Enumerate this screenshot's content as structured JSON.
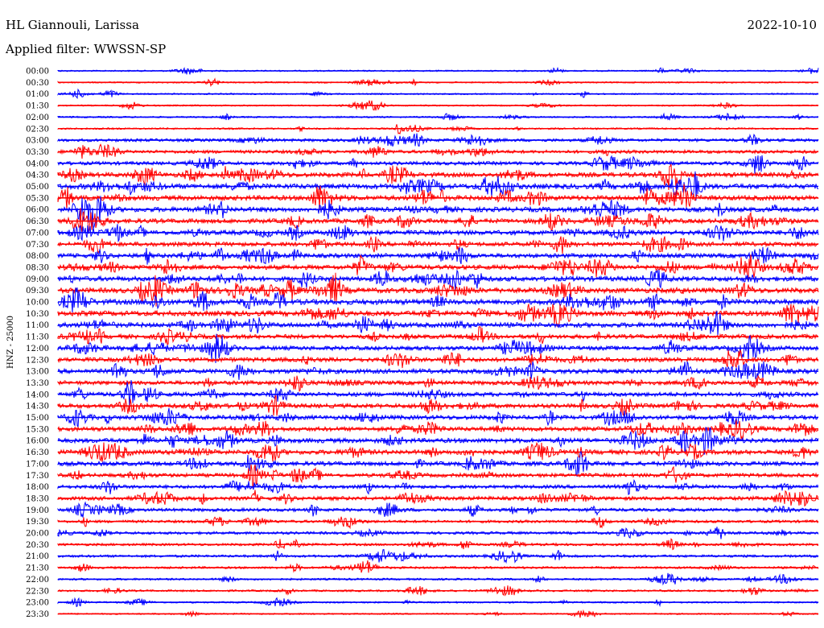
{
  "header": {
    "station": "HL Giannouli, Larissa",
    "date": "2022-10-10",
    "filter": "Applied filter: WWSSN-SP"
  },
  "chart_data": {
    "type": "line",
    "ylabel": "HNZ - 25000",
    "colors": {
      "odd_rows": "#0000ff",
      "even_rows": "#ff0000",
      "text": "#000000"
    },
    "rows": [
      {
        "label": "00:00",
        "activity": 0.15
      },
      {
        "label": "00:30",
        "activity": 0.15
      },
      {
        "label": "01:00",
        "activity": 0.15
      },
      {
        "label": "01:30",
        "activity": 0.15
      },
      {
        "label": "02:00",
        "activity": 0.18
      },
      {
        "label": "02:30",
        "activity": 0.2
      },
      {
        "label": "03:00",
        "activity": 0.45
      },
      {
        "label": "03:30",
        "activity": 0.5
      },
      {
        "label": "04:00",
        "activity": 0.55
      },
      {
        "label": "04:30",
        "activity": 0.75
      },
      {
        "label": "05:00",
        "activity": 0.85
      },
      {
        "label": "05:30",
        "activity": 0.8
      },
      {
        "label": "06:00",
        "activity": 0.8
      },
      {
        "label": "06:30",
        "activity": 0.75
      },
      {
        "label": "07:00",
        "activity": 0.75
      },
      {
        "label": "07:30",
        "activity": 0.7
      },
      {
        "label": "08:00",
        "activity": 0.7
      },
      {
        "label": "08:30",
        "activity": 0.75
      },
      {
        "label": "09:00",
        "activity": 0.8
      },
      {
        "label": "09:30",
        "activity": 0.85
      },
      {
        "label": "10:00",
        "activity": 0.9
      },
      {
        "label": "10:30",
        "activity": 0.85
      },
      {
        "label": "11:00",
        "activity": 0.8
      },
      {
        "label": "11:30",
        "activity": 0.7
      },
      {
        "label": "12:00",
        "activity": 0.7
      },
      {
        "label": "12:30",
        "activity": 0.7
      },
      {
        "label": "13:00",
        "activity": 0.75
      },
      {
        "label": "13:30",
        "activity": 0.65
      },
      {
        "label": "14:00",
        "activity": 0.7
      },
      {
        "label": "14:30",
        "activity": 0.7
      },
      {
        "label": "15:00",
        "activity": 0.7
      },
      {
        "label": "15:30",
        "activity": 0.7
      },
      {
        "label": "16:00",
        "activity": 0.75
      },
      {
        "label": "16:30",
        "activity": 0.75
      },
      {
        "label": "17:00",
        "activity": 0.7
      },
      {
        "label": "17:30",
        "activity": 0.6
      },
      {
        "label": "18:00",
        "activity": 0.55
      },
      {
        "label": "18:30",
        "activity": 0.6
      },
      {
        "label": "19:00",
        "activity": 0.5
      },
      {
        "label": "19:30",
        "activity": 0.4
      },
      {
        "label": "20:00",
        "activity": 0.4
      },
      {
        "label": "20:30",
        "activity": 0.35
      },
      {
        "label": "21:00",
        "activity": 0.35
      },
      {
        "label": "21:30",
        "activity": 0.3
      },
      {
        "label": "22:00",
        "activity": 0.25
      },
      {
        "label": "22:30",
        "activity": 0.25
      },
      {
        "label": "23:00",
        "activity": 0.2
      },
      {
        "label": "23:30",
        "activity": 0.15
      }
    ]
  }
}
